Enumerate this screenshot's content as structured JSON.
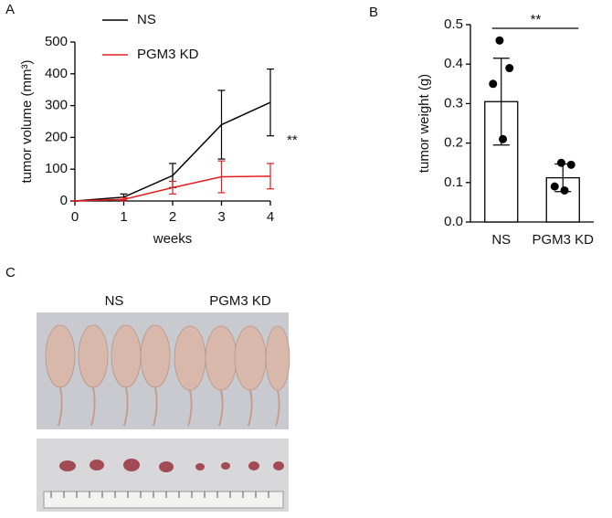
{
  "chart_data": [
    {
      "type": "line",
      "panel": "A",
      "x_label": "weeks",
      "y_label": "tumor volume (mm³)",
      "x": [
        0,
        1,
        2,
        3,
        4
      ],
      "xlim": [
        0,
        4
      ],
      "xticks": [
        0,
        1,
        2,
        3,
        4
      ],
      "ylim": [
        0,
        500
      ],
      "yticks": [
        0,
        100,
        200,
        300,
        400,
        500
      ],
      "series": [
        {
          "name": "NS",
          "color": "#000000",
          "values": [
            0,
            12,
            80,
            240,
            310
          ],
          "errors": [
            0,
            10,
            38,
            108,
            105
          ]
        },
        {
          "name": "PGM3 KD",
          "color": "#e02020",
          "values": [
            0,
            5,
            42,
            76,
            78
          ],
          "errors": [
            0,
            5,
            20,
            50,
            40
          ]
        }
      ],
      "annotation": {
        "text": "**",
        "color": "#e02020"
      }
    },
    {
      "type": "bar",
      "panel": "B",
      "y_label": "tumor weight (g)",
      "categories": [
        "NS",
        "PGM3 KD"
      ],
      "values": [
        0.305,
        0.112
      ],
      "errors": [
        0.11,
        0.035
      ],
      "points": [
        [
          0.46,
          0.39,
          0.35,
          0.21
        ],
        [
          0.15,
          0.145,
          0.09,
          0.08
        ]
      ],
      "ylim": [
        0,
        0.5
      ],
      "yticks": [
        {
          "value": 0,
          "label": "0.0"
        },
        0.1,
        0.2,
        0.3,
        0.4,
        0.5
      ],
      "significance": "**"
    }
  ],
  "figure_c": {
    "panel": "C",
    "labels": [
      "NS",
      "PGM3 KD"
    ]
  }
}
